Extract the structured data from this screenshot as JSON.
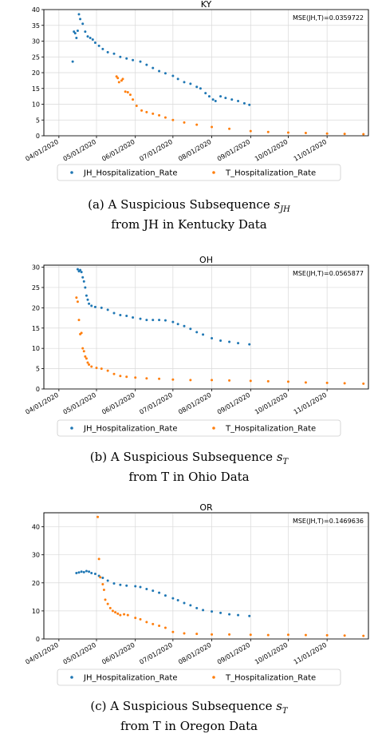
{
  "chart_data": [
    {
      "type": "scatter",
      "title": "KY",
      "annotation": "MSE(JH,T)=0.0359722",
      "caption_line1": "(a) A Suspicious Subsequence s",
      "caption_sub": "JH",
      "caption_line2": "from JH in Kentucky Data",
      "x_ticks": [
        "04/01/2020",
        "05/01/2020",
        "06/01/2020",
        "07/01/2020",
        "08/01/2020",
        "09/01/2020",
        "10/01/2020",
        "11/01/2020"
      ],
      "y_ticks": [
        0,
        5,
        10,
        15,
        20,
        25,
        30,
        35,
        40
      ],
      "ylim": [
        0,
        40
      ],
      "xlim": [
        "2020-03-20",
        "2020-12-04"
      ],
      "grid": true,
      "legend": "bottom-outside",
      "series": [
        {
          "name": "JH_Hospitalization_Rate",
          "color": "#1f77b4",
          "points": [
            [
              "2020-04-12",
              23.5
            ],
            [
              "2020-04-13",
              33.0
            ],
            [
              "2020-04-14",
              32.5
            ],
            [
              "2020-04-15",
              31.0
            ],
            [
              "2020-04-16",
              33.3
            ],
            [
              "2020-04-17",
              38.5
            ],
            [
              "2020-04-18",
              37.0
            ],
            [
              "2020-04-20",
              35.5
            ],
            [
              "2020-04-22",
              33.0
            ],
            [
              "2020-04-24",
              31.5
            ],
            [
              "2020-04-26",
              31.0
            ],
            [
              "2020-04-28",
              30.5
            ],
            [
              "2020-04-30",
              29.5
            ],
            [
              "2020-05-03",
              28.5
            ],
            [
              "2020-05-06",
              27.5
            ],
            [
              "2020-05-10",
              26.5
            ],
            [
              "2020-05-15",
              26.0
            ],
            [
              "2020-05-20",
              25.0
            ],
            [
              "2020-05-25",
              24.5
            ],
            [
              "2020-05-30",
              24.0
            ],
            [
              "2020-06-05",
              23.5
            ],
            [
              "2020-06-10",
              22.5
            ],
            [
              "2020-06-15",
              21.5
            ],
            [
              "2020-06-20",
              20.5
            ],
            [
              "2020-06-25",
              19.8
            ],
            [
              "2020-07-01",
              19.0
            ],
            [
              "2020-07-05",
              18.0
            ],
            [
              "2020-07-10",
              17.0
            ],
            [
              "2020-07-15",
              16.5
            ],
            [
              "2020-07-20",
              15.5
            ],
            [
              "2020-07-23",
              15.0
            ],
            [
              "2020-07-27",
              13.5
            ],
            [
              "2020-07-30",
              12.5
            ],
            [
              "2020-08-02",
              11.5
            ],
            [
              "2020-08-04",
              11.0
            ],
            [
              "2020-08-08",
              12.5
            ],
            [
              "2020-08-12",
              12.0
            ],
            [
              "2020-08-17",
              11.5
            ],
            [
              "2020-08-22",
              11.0
            ],
            [
              "2020-08-27",
              10.3
            ],
            [
              "2020-08-31",
              9.8
            ]
          ]
        },
        {
          "name": "T_Hospitalization_Rate",
          "color": "#ff7f0e",
          "points": [
            [
              "2020-05-17",
              18.8
            ],
            [
              "2020-05-18",
              18.3
            ],
            [
              "2020-05-19",
              17.0
            ],
            [
              "2020-05-21",
              17.5
            ],
            [
              "2020-05-22",
              18.0
            ],
            [
              "2020-05-24",
              14.0
            ],
            [
              "2020-05-26",
              13.8
            ],
            [
              "2020-05-28",
              13.0
            ],
            [
              "2020-05-30",
              11.5
            ],
            [
              "2020-06-02",
              9.5
            ],
            [
              "2020-06-06",
              8.0
            ],
            [
              "2020-06-10",
              7.5
            ],
            [
              "2020-06-15",
              7.0
            ],
            [
              "2020-06-20",
              6.5
            ],
            [
              "2020-06-25",
              5.8
            ],
            [
              "2020-07-01",
              5.0
            ],
            [
              "2020-07-10",
              4.2
            ],
            [
              "2020-07-20",
              3.5
            ],
            [
              "2020-08-01",
              2.8
            ],
            [
              "2020-08-15",
              2.2
            ],
            [
              "2020-09-01",
              1.5
            ],
            [
              "2020-09-15",
              1.2
            ],
            [
              "2020-10-01",
              1.0
            ],
            [
              "2020-10-15",
              0.9
            ],
            [
              "2020-11-01",
              0.7
            ],
            [
              "2020-11-15",
              0.6
            ],
            [
              "2020-11-30",
              0.5
            ]
          ]
        }
      ]
    },
    {
      "type": "scatter",
      "title": "OH",
      "annotation": "MSE(JH,T)=0.0565877",
      "caption_line1": "(b) A Suspicious Subsequence s",
      "caption_sub": "T",
      "caption_line2": "from T in Ohio Data",
      "x_ticks": [
        "04/01/2020",
        "05/01/2020",
        "06/01/2020",
        "07/01/2020",
        "08/01/2020",
        "09/01/2020",
        "10/01/2020",
        "11/01/2020"
      ],
      "y_ticks": [
        0,
        5,
        10,
        15,
        20,
        25,
        30
      ],
      "ylim": [
        0,
        30.5
      ],
      "xlim": [
        "2020-03-20",
        "2020-12-04"
      ],
      "grid": true,
      "legend": "bottom-outside",
      "series": [
        {
          "name": "JH_Hospitalization_Rate",
          "color": "#1f77b4",
          "points": [
            [
              "2020-04-16",
              29.5
            ],
            [
              "2020-04-17",
              29.0
            ],
            [
              "2020-04-18",
              29.3
            ],
            [
              "2020-04-19",
              28.8
            ],
            [
              "2020-04-20",
              27.5
            ],
            [
              "2020-04-21",
              26.5
            ],
            [
              "2020-04-22",
              25.0
            ],
            [
              "2020-04-23",
              23.0
            ],
            [
              "2020-04-24",
              22.0
            ],
            [
              "2020-04-25",
              21.0
            ],
            [
              "2020-04-27",
              20.5
            ],
            [
              "2020-04-30",
              20.2
            ],
            [
              "2020-05-05",
              20.0
            ],
            [
              "2020-05-10",
              19.5
            ],
            [
              "2020-05-15",
              18.7
            ],
            [
              "2020-05-20",
              18.2
            ],
            [
              "2020-05-25",
              18.0
            ],
            [
              "2020-05-30",
              17.6
            ],
            [
              "2020-06-05",
              17.3
            ],
            [
              "2020-06-10",
              17.0
            ],
            [
              "2020-06-15",
              17.0
            ],
            [
              "2020-06-20",
              17.0
            ],
            [
              "2020-06-25",
              16.9
            ],
            [
              "2020-07-01",
              16.5
            ],
            [
              "2020-07-05",
              16.0
            ],
            [
              "2020-07-10",
              15.5
            ],
            [
              "2020-07-15",
              14.8
            ],
            [
              "2020-07-20",
              14.0
            ],
            [
              "2020-07-25",
              13.4
            ],
            [
              "2020-08-01",
              12.5
            ],
            [
              "2020-08-08",
              11.9
            ],
            [
              "2020-08-15",
              11.6
            ],
            [
              "2020-08-22",
              11.3
            ],
            [
              "2020-08-31",
              11.0
            ]
          ]
        },
        {
          "name": "T_Hospitalization_Rate",
          "color": "#ff7f0e",
          "points": [
            [
              "2020-04-15",
              22.5
            ],
            [
              "2020-04-16",
              21.5
            ],
            [
              "2020-04-17",
              17.0
            ],
            [
              "2020-04-18",
              13.5
            ],
            [
              "2020-04-19",
              13.8
            ],
            [
              "2020-04-20",
              10.0
            ],
            [
              "2020-04-21",
              9.3
            ],
            [
              "2020-04-22",
              8.0
            ],
            [
              "2020-04-23",
              7.5
            ],
            [
              "2020-04-24",
              6.5
            ],
            [
              "2020-04-25",
              6.0
            ],
            [
              "2020-04-27",
              5.5
            ],
            [
              "2020-05-01",
              5.2
            ],
            [
              "2020-05-05",
              5.0
            ],
            [
              "2020-05-10",
              4.5
            ],
            [
              "2020-05-15",
              3.7
            ],
            [
              "2020-05-20",
              3.2
            ],
            [
              "2020-05-25",
              3.0
            ],
            [
              "2020-06-01",
              2.8
            ],
            [
              "2020-06-10",
              2.6
            ],
            [
              "2020-06-20",
              2.5
            ],
            [
              "2020-07-01",
              2.3
            ],
            [
              "2020-07-15",
              2.2
            ],
            [
              "2020-08-01",
              2.2
            ],
            [
              "2020-08-15",
              2.1
            ],
            [
              "2020-09-01",
              2.0
            ],
            [
              "2020-09-15",
              1.9
            ],
            [
              "2020-10-01",
              1.8
            ],
            [
              "2020-10-15",
              1.6
            ],
            [
              "2020-11-01",
              1.5
            ],
            [
              "2020-11-15",
              1.4
            ],
            [
              "2020-11-30",
              1.3
            ]
          ]
        }
      ]
    },
    {
      "type": "scatter",
      "title": "OR",
      "annotation": "MSE(JH,T)=0.1469636",
      "caption_line1": "(c) A Suspicious Subsequence s",
      "caption_sub": "T",
      "caption_line2": "from T in Oregon Data",
      "x_ticks": [
        "04/01/2020",
        "05/01/2020",
        "06/01/2020",
        "07/01/2020",
        "08/01/2020",
        "09/01/2020",
        "10/01/2020",
        "11/01/2020"
      ],
      "y_ticks": [
        0,
        10,
        20,
        30,
        40
      ],
      "ylim": [
        0,
        45
      ],
      "xlim": [
        "2020-03-20",
        "2020-12-04"
      ],
      "grid": true,
      "legend": "bottom-outside",
      "series": [
        {
          "name": "JH_Hospitalization_Rate",
          "color": "#1f77b4",
          "points": [
            [
              "2020-04-15",
              23.5
            ],
            [
              "2020-04-17",
              23.7
            ],
            [
              "2020-04-19",
              24.0
            ],
            [
              "2020-04-21",
              23.8
            ],
            [
              "2020-04-23",
              24.2
            ],
            [
              "2020-04-25",
              24.0
            ],
            [
              "2020-04-27",
              23.5
            ],
            [
              "2020-04-30",
              23.2
            ],
            [
              "2020-05-03",
              22.5
            ],
            [
              "2020-05-06",
              21.8
            ],
            [
              "2020-05-10",
              20.8
            ],
            [
              "2020-05-15",
              19.8
            ],
            [
              "2020-05-20",
              19.3
            ],
            [
              "2020-05-25",
              19.0
            ],
            [
              "2020-06-01",
              18.8
            ],
            [
              "2020-06-05",
              18.5
            ],
            [
              "2020-06-10",
              17.8
            ],
            [
              "2020-06-15",
              17.2
            ],
            [
              "2020-06-20",
              16.5
            ],
            [
              "2020-06-25",
              15.5
            ],
            [
              "2020-07-01",
              14.5
            ],
            [
              "2020-07-05",
              13.8
            ],
            [
              "2020-07-10",
              12.8
            ],
            [
              "2020-07-15",
              12.0
            ],
            [
              "2020-07-20",
              11.0
            ],
            [
              "2020-07-25",
              10.3
            ],
            [
              "2020-08-01",
              9.8
            ],
            [
              "2020-08-08",
              9.3
            ],
            [
              "2020-08-15",
              8.8
            ],
            [
              "2020-08-22",
              8.5
            ],
            [
              "2020-08-31",
              8.2
            ]
          ]
        },
        {
          "name": "T_Hospitalization_Rate",
          "color": "#ff7f0e",
          "points": [
            [
              "2020-05-02",
              43.5
            ],
            [
              "2020-05-03",
              28.5
            ],
            [
              "2020-05-04",
              22.0
            ],
            [
              "2020-05-06",
              19.5
            ],
            [
              "2020-05-07",
              17.5
            ],
            [
              "2020-05-08",
              14.0
            ],
            [
              "2020-05-10",
              12.5
            ],
            [
              "2020-05-12",
              11.0
            ],
            [
              "2020-05-14",
              10.0
            ],
            [
              "2020-05-16",
              9.5
            ],
            [
              "2020-05-18",
              9.0
            ],
            [
              "2020-05-20",
              8.5
            ],
            [
              "2020-05-23",
              8.8
            ],
            [
              "2020-05-26",
              8.5
            ],
            [
              "2020-06-01",
              7.5
            ],
            [
              "2020-06-05",
              7.0
            ],
            [
              "2020-06-10",
              6.0
            ],
            [
              "2020-06-15",
              5.3
            ],
            [
              "2020-06-20",
              4.7
            ],
            [
              "2020-06-25",
              4.0
            ],
            [
              "2020-07-01",
              2.5
            ],
            [
              "2020-07-10",
              2.0
            ],
            [
              "2020-07-20",
              1.8
            ],
            [
              "2020-08-01",
              1.6
            ],
            [
              "2020-08-15",
              1.6
            ],
            [
              "2020-09-01",
              1.5
            ],
            [
              "2020-09-15",
              1.4
            ],
            [
              "2020-10-01",
              1.5
            ],
            [
              "2020-10-15",
              1.4
            ],
            [
              "2020-11-01",
              1.3
            ],
            [
              "2020-11-15",
              1.2
            ],
            [
              "2020-11-30",
              1.1
            ]
          ]
        }
      ]
    }
  ]
}
